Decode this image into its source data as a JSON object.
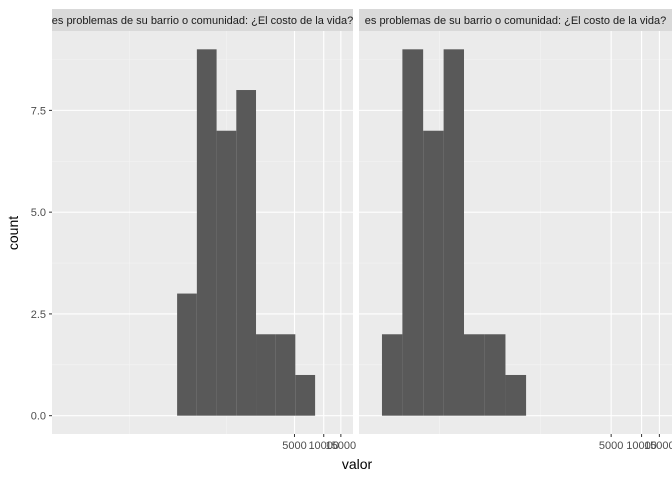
{
  "chart_data": {
    "type": "bar",
    "subtype": "histogram-faceted",
    "xlabel": "valor",
    "ylabel": "count",
    "x_scale": "log10",
    "grid": true,
    "theme": "ggplot-grey",
    "colors": {
      "panel_bg": "#ebebeb",
      "strip_bg": "#d9d9d9",
      "bar_fill": "#595959",
      "grid_major": "#ffffff",
      "grid_minor": "#f4f4f4"
    },
    "y_ticks": [
      {
        "value": 0,
        "label": "0.0"
      },
      {
        "value": 2.5,
        "label": "2.5"
      },
      {
        "value": 5,
        "label": "5.0"
      },
      {
        "value": 7.5,
        "label": "7.5"
      }
    ],
    "x_ticks": [
      {
        "value": 5000,
        "label": "5000"
      },
      {
        "value": 10000,
        "label": "10000"
      },
      {
        "value": 15000,
        "label": "15000"
      }
    ],
    "xlim": [
      16,
      20000
    ],
    "ylim": [
      -0.45,
      9.45
    ],
    "facets": [
      {
        "strip": "es problemas de su barrio o comunidad: ¿El costo de la vida?",
        "bins": [
          {
            "x0": 310,
            "x1": 495,
            "count": 3
          },
          {
            "x0": 495,
            "x1": 790,
            "count": 9
          },
          {
            "x0": 790,
            "x1": 1260,
            "count": 7
          },
          {
            "x0": 1260,
            "x1": 2010,
            "count": 8
          },
          {
            "x0": 2010,
            "x1": 3200,
            "count": 2
          },
          {
            "x0": 3200,
            "x1": 5100,
            "count": 2
          },
          {
            "x0": 5100,
            "x1": 8150,
            "count": 1
          }
        ]
      },
      {
        "strip": "es problemas de su barrio o comunidad: ¿El costo de la vida?",
        "bins": [
          {
            "x0": 27,
            "x1": 43,
            "count": 2
          },
          {
            "x0": 43,
            "x1": 69,
            "count": 9
          },
          {
            "x0": 69,
            "x1": 110,
            "count": 7
          },
          {
            "x0": 110,
            "x1": 175,
            "count": 9
          },
          {
            "x0": 175,
            "x1": 280,
            "count": 2
          },
          {
            "x0": 280,
            "x1": 450,
            "count": 2
          },
          {
            "x0": 450,
            "x1": 720,
            "count": 1
          }
        ]
      }
    ]
  }
}
